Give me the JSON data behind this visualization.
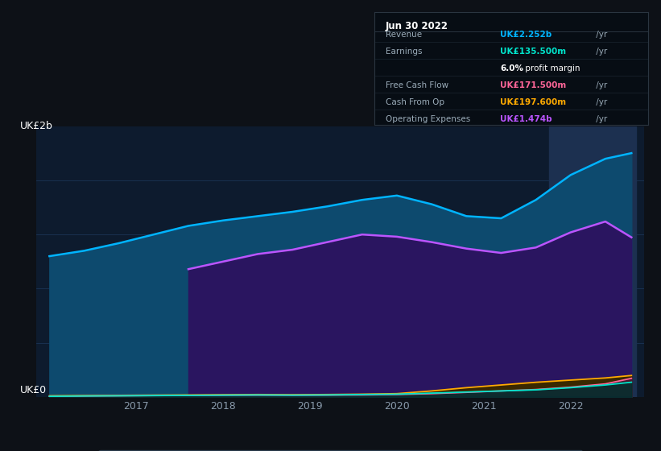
{
  "bg_color": "#0d1117",
  "plot_bg_color": "#0d1b2e",
  "title_date": "Jun 30 2022",
  "ylabel_top": "UK£2b",
  "ylabel_bottom": "UK£0",
  "x_years": [
    2016.0,
    2016.4,
    2016.8,
    2017.2,
    2017.6,
    2018.0,
    2018.4,
    2018.8,
    2019.2,
    2019.6,
    2020.0,
    2020.4,
    2020.8,
    2021.2,
    2021.6,
    2022.0,
    2022.4,
    2022.7
  ],
  "revenue": [
    1.3,
    1.35,
    1.42,
    1.5,
    1.58,
    1.63,
    1.67,
    1.71,
    1.76,
    1.82,
    1.86,
    1.78,
    1.67,
    1.65,
    1.82,
    2.05,
    2.2,
    2.252
  ],
  "op_expenses_x": [
    2017.6,
    2018.0,
    2018.4,
    2018.8,
    2019.2,
    2019.6,
    2020.0,
    2020.4,
    2020.8,
    2021.2,
    2021.6,
    2022.0,
    2022.4,
    2022.7
  ],
  "op_expenses": [
    1.18,
    1.25,
    1.32,
    1.36,
    1.43,
    1.5,
    1.48,
    1.43,
    1.37,
    1.33,
    1.38,
    1.52,
    1.62,
    1.474
  ],
  "earnings": [
    0.005,
    0.008,
    0.01,
    0.012,
    0.014,
    0.016,
    0.018,
    0.016,
    0.018,
    0.022,
    0.025,
    0.035,
    0.045,
    0.055,
    0.065,
    0.085,
    0.11,
    0.1355
  ],
  "free_cash_flow": [
    0.005,
    0.008,
    0.01,
    0.012,
    0.013,
    0.015,
    0.016,
    0.015,
    0.016,
    0.018,
    0.022,
    0.03,
    0.042,
    0.055,
    0.068,
    0.09,
    0.12,
    0.1715
  ],
  "cash_from_op": [
    0.01,
    0.012,
    0.014,
    0.016,
    0.018,
    0.02,
    0.022,
    0.02,
    0.022,
    0.025,
    0.03,
    0.055,
    0.085,
    0.11,
    0.135,
    0.155,
    0.175,
    0.1976
  ],
  "revenue_color": "#00b4ff",
  "revenue_fill": "#0d4a6e",
  "op_expenses_color": "#bb55ff",
  "op_expenses_fill": "#2a1560",
  "earnings_color": "#00e5cc",
  "earnings_fill": "#003030",
  "free_cash_flow_color": "#ff6699",
  "free_cash_flow_fill": "#4a1535",
  "cash_from_op_color": "#ffaa00",
  "cash_from_op_fill": "#3a2800",
  "highlight_x_start": 2021.75,
  "highlight_x_end": 2022.75,
  "highlight_color": "#1c3050",
  "grid_color": "#1e3a5f",
  "tick_color": "#8899aa",
  "legend_bg": "#0d1b2e",
  "legend_border": "#2a3a4a",
  "info_items": [
    {
      "label": "Revenue",
      "value": "UK£2.252b",
      "suffix": " /yr",
      "color": "#00b4ff"
    },
    {
      "label": "Earnings",
      "value": "UK£135.500m",
      "suffix": " /yr",
      "color": "#00e5cc"
    },
    {
      "label": "",
      "value": "6.0%",
      "suffix": " profit margin",
      "color": "#ffffff",
      "bold_prefix": true
    },
    {
      "label": "Free Cash Flow",
      "value": "UK£171.500m",
      "suffix": " /yr",
      "color": "#ff6699"
    },
    {
      "label": "Cash From Op",
      "value": "UK£197.600m",
      "suffix": " /yr",
      "color": "#ffaa00"
    },
    {
      "label": "Operating Expenses",
      "value": "UK£1.474b",
      "suffix": " /yr",
      "color": "#bb55ff"
    }
  ],
  "ylim": [
    0,
    2.5
  ],
  "xlim": [
    2015.85,
    2022.85
  ]
}
